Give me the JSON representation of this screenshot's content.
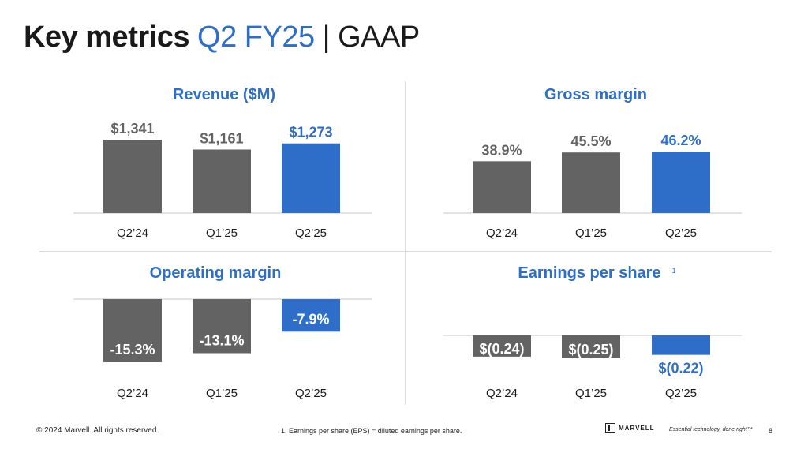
{
  "title": {
    "main": "Key metrics",
    "highlight": "Q2 FY25",
    "rest": "| GAAP"
  },
  "colors": {
    "accent": "#2e6ec9",
    "gray": "#636363",
    "axis": "#d9d9d9"
  },
  "chart_data": [
    {
      "type": "bar",
      "title": "Revenue ($M)",
      "categories": [
        "Q2’24",
        "Q1’25",
        "Q2’25"
      ],
      "values": [
        1341,
        1161,
        1273
      ],
      "labels": [
        "$1,341",
        "$1,161",
        "$1,273"
      ],
      "highlight_index": 2
    },
    {
      "type": "bar",
      "title": "Gross margin",
      "categories": [
        "Q2’24",
        "Q1’25",
        "Q2’25"
      ],
      "values": [
        38.9,
        45.5,
        46.2
      ],
      "labels": [
        "38.9%",
        "45.5%",
        "46.2%"
      ],
      "highlight_index": 2
    },
    {
      "type": "bar",
      "title": "Operating margin",
      "categories": [
        "Q2’24",
        "Q1’25",
        "Q2’25"
      ],
      "values": [
        -15.3,
        -13.1,
        -7.9
      ],
      "labels": [
        "-15.3%",
        "-13.1%",
        "-7.9%"
      ],
      "highlight_index": 2
    },
    {
      "type": "bar",
      "title": "Earnings per share",
      "title_footnote": "1",
      "categories": [
        "Q2’24",
        "Q1’25",
        "Q2’25"
      ],
      "values": [
        -0.24,
        -0.25,
        -0.22
      ],
      "labels": [
        "$(0.24)",
        "$(0.25)",
        "$(0.22)"
      ],
      "highlight_index": 2
    }
  ],
  "footer": {
    "copyright": "© 2024 Marvell. All rights reserved.",
    "note": "1. Earnings per share (EPS) = diluted earnings per share.",
    "brand": "MARVELL",
    "tagline": "Essential technology, done right™",
    "page": "8"
  }
}
